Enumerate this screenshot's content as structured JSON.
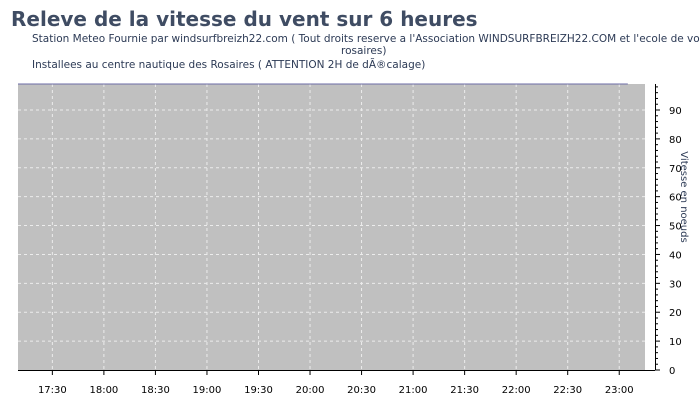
{
  "header": {
    "title": "Releve de la vitesse du vent sur 6 heures",
    "subtitle_line1": "Station Meteo Fournie  par windsurfbreizh22.com  ( Tout droits reserve a l'Association WINDSURFBREIZH22.COM  et l'ecole de voile les",
    "subtitle_line2": "rosaires)",
    "subtitle_line3": "Installees au centre nautique des Rosaires ( ATTENTION 2H de dÃ®calage)"
  },
  "colors": {
    "plot_background": "#c0c0c0",
    "grid": "#ececec",
    "series_line": "#6b6ba6",
    "axis": "#000000"
  },
  "chart_data": {
    "type": "line",
    "title": "Releve de la vitesse du vent sur 6 heures",
    "xlabel": "",
    "ylabel": "Vitesse en noeuds",
    "x_tick_labels": [
      "17:30",
      "18:00",
      "18:30",
      "19:00",
      "19:30",
      "20:00",
      "20:30",
      "21:00",
      "21:30",
      "22:00",
      "22:30",
      "23:00"
    ],
    "x_range": [
      "17:10",
      "23:15"
    ],
    "y_ticks": [
      0,
      10,
      20,
      30,
      40,
      50,
      60,
      70,
      80,
      90
    ],
    "ylim": [
      0,
      99
    ],
    "y_axis_side": "right",
    "grid": true,
    "series": [
      {
        "x": [
          "17:10",
          "23:05"
        ],
        "values": [
          99,
          99
        ]
      }
    ]
  }
}
